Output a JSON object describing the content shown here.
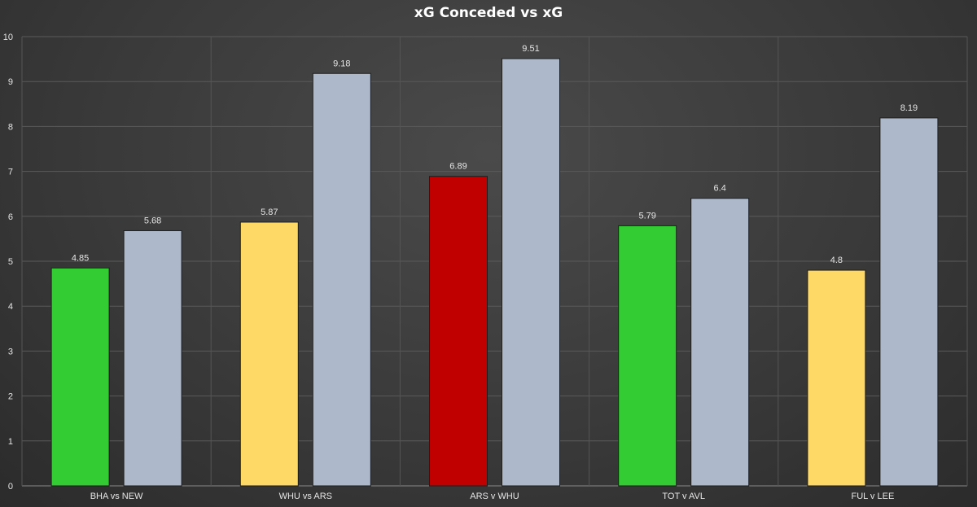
{
  "chart_data": {
    "type": "bar",
    "title": "xG Conceded vs xG",
    "xlabel": "",
    "ylabel": "",
    "ylim": [
      0,
      10
    ],
    "yticks": [
      0,
      1,
      2,
      3,
      4,
      5,
      6,
      7,
      8,
      9,
      10
    ],
    "grid": true,
    "categories": [
      "BHA vs NEW",
      "WHU vs ARS",
      "ARS v WHU",
      "TOT v AVL",
      "FUL v LEE"
    ],
    "series": [
      {
        "values": [
          4.85,
          5.87,
          6.89,
          5.79,
          4.8
        ],
        "colors": [
          "#33cc33",
          "#ffd966",
          "#c00000",
          "#33cc33",
          "#ffd966"
        ]
      },
      {
        "values": [
          5.68,
          9.18,
          9.51,
          6.4,
          8.19
        ],
        "colors": [
          "#adb9ca",
          "#adb9ca",
          "#adb9ca",
          "#adb9ca",
          "#adb9ca"
        ]
      }
    ]
  }
}
